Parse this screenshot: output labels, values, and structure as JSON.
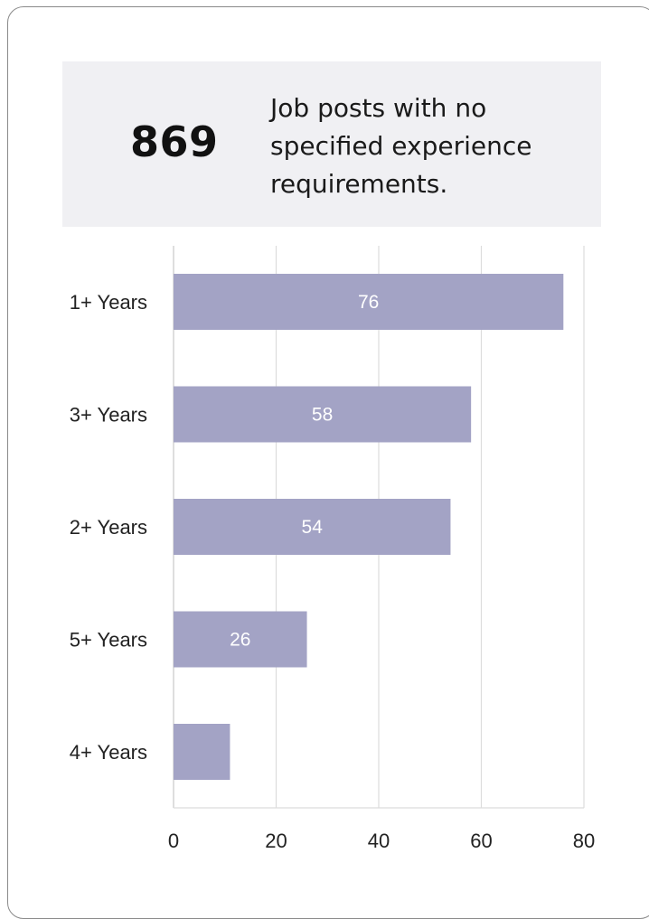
{
  "stat": {
    "number": "869",
    "description": "Job posts with no specified experience requirements."
  },
  "colors": {
    "bar": "#a3a3c5",
    "grid": "#dcdcdc",
    "bar_label": "#ffffff",
    "tick_label": "#222222"
  },
  "chart_data": {
    "type": "bar",
    "orientation": "horizontal",
    "categories": [
      "1+ Years",
      "3+ Years",
      "2+ Years",
      "5+ Years",
      "4+ Years"
    ],
    "values": [
      76,
      58,
      54,
      26,
      11
    ],
    "data_labels": [
      "76",
      "58",
      "54",
      "26",
      ""
    ],
    "xlim": [
      0,
      80
    ],
    "x_ticks": [
      "0",
      "20",
      "40",
      "60",
      "80"
    ],
    "grid": true,
    "title": "",
    "xlabel": "",
    "ylabel": ""
  }
}
